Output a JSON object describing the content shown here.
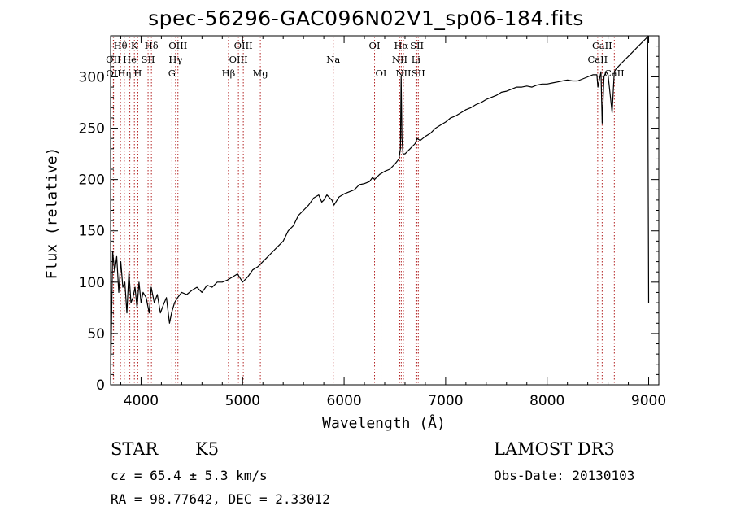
{
  "chart_data": {
    "type": "line",
    "title": "spec-56296-GAC096N02V1_sp06-184.fits",
    "xlabel": "Wavelength (Å)",
    "ylabel": "Flux (relative)",
    "xlim": [
      3700,
      9100
    ],
    "ylim": [
      0,
      340
    ],
    "xticks": [
      4000,
      5000,
      6000,
      7000,
      8000,
      9000
    ],
    "yticks": [
      0,
      50,
      100,
      150,
      200,
      250,
      300
    ],
    "series": [
      {
        "name": "spectrum",
        "x": [
          3700,
          3720,
          3740,
          3760,
          3780,
          3800,
          3820,
          3840,
          3860,
          3880,
          3900,
          3920,
          3940,
          3960,
          3980,
          4000,
          4020,
          4050,
          4080,
          4100,
          4130,
          4160,
          4190,
          4220,
          4250,
          4280,
          4300,
          4330,
          4360,
          4400,
          4450,
          4500,
          4550,
          4600,
          4650,
          4700,
          4750,
          4800,
          4850,
          4900,
          4950,
          5000,
          5050,
          5100,
          5150,
          5200,
          5250,
          5300,
          5350,
          5400,
          5450,
          5500,
          5550,
          5600,
          5650,
          5700,
          5750,
          5780,
          5800,
          5830,
          5860,
          5880,
          5900,
          5950,
          6000,
          6050,
          6100,
          6150,
          6200,
          6250,
          6280,
          6300,
          6350,
          6400,
          6450,
          6500,
          6540,
          6555,
          6562,
          6570,
          6580,
          6600,
          6650,
          6700,
          6720,
          6750,
          6800,
          6850,
          6900,
          6950,
          7000,
          7050,
          7100,
          7150,
          7200,
          7250,
          7300,
          7350,
          7400,
          7450,
          7500,
          7550,
          7600,
          7650,
          7700,
          7750,
          7800,
          7850,
          7900,
          7950,
          8000,
          8050,
          8100,
          8150,
          8200,
          8250,
          8300,
          8350,
          8400,
          8450,
          8490,
          8500,
          8530,
          8542,
          8560,
          8580,
          8600,
          8640,
          8662,
          8680,
          8700,
          8750,
          8800,
          8850,
          8900,
          8950,
          8980,
          8990,
          9000
        ],
        "values": [
          5,
          130,
          110,
          125,
          90,
          120,
          95,
          100,
          70,
          110,
          80,
          85,
          95,
          75,
          100,
          80,
          90,
          85,
          70,
          95,
          80,
          88,
          70,
          78,
          85,
          60,
          70,
          80,
          85,
          90,
          88,
          92,
          95,
          90,
          97,
          95,
          100,
          100,
          102,
          105,
          108,
          100,
          105,
          112,
          115,
          120,
          125,
          130,
          135,
          140,
          150,
          155,
          165,
          170,
          175,
          182,
          185,
          178,
          180,
          185,
          182,
          180,
          175,
          183,
          186,
          188,
          190,
          195,
          196,
          198,
          202,
          200,
          205,
          208,
          210,
          215,
          220,
          230,
          300,
          240,
          225,
          225,
          230,
          235,
          240,
          238,
          242,
          245,
          250,
          253,
          256,
          260,
          262,
          265,
          268,
          270,
          273,
          275,
          278,
          280,
          282,
          285,
          286,
          288,
          290,
          290,
          291,
          290,
          292,
          293,
          293,
          294,
          295,
          296,
          297,
          296,
          296,
          298,
          300,
          302,
          302,
          290,
          305,
          255,
          300,
          305,
          302,
          265,
          305,
          308,
          310,
          315,
          320,
          325,
          330,
          335,
          338,
          340,
          80
        ],
        "color": "#000000"
      }
    ],
    "emission_lines": {
      "top_row": [
        {
          "label": "Hθ",
          "x": 3797
        },
        {
          "label": "K",
          "x": 3934
        },
        {
          "label": "Hδ",
          "x": 4102
        },
        {
          "label": "OIII",
          "x": 4363
        },
        {
          "label": "OIII",
          "x": 5007
        },
        {
          "label": "OI",
          "x": 6300
        },
        {
          "label": "Hα",
          "x": 6563
        },
        {
          "label": "SII",
          "x": 6717
        },
        {
          "label": "CaII",
          "x": 8542
        }
      ],
      "middle_row": [
        {
          "label": "OII",
          "x": 3727
        },
        {
          "label": "He",
          "x": 3889
        },
        {
          "label": "SII",
          "x": 4069
        },
        {
          "label": "Hγ",
          "x": 4340
        },
        {
          "label": "OIII",
          "x": 4959
        },
        {
          "label": "Na",
          "x": 5893
        },
        {
          "label": "NII",
          "x": 6548
        },
        {
          "label": "Li",
          "x": 6708
        },
        {
          "label": "CaII",
          "x": 8498
        }
      ],
      "bottom_row": [
        {
          "label": "OII",
          "x": 3729
        },
        {
          "label": "Hη",
          "x": 3835
        },
        {
          "label": "H",
          "x": 3968
        },
        {
          "label": "G",
          "x": 4304
        },
        {
          "label": "Hβ",
          "x": 4861
        },
        {
          "label": "Mg",
          "x": 5175
        },
        {
          "label": "OI",
          "x": 6364
        },
        {
          "label": "NII",
          "x": 6584
        },
        {
          "label": "SII",
          "x": 6731
        },
        {
          "label": "CaII",
          "x": 8662
        }
      ]
    }
  },
  "info": {
    "class": "STAR",
    "subclass": "K5",
    "survey": "LAMOST DR3",
    "cz": "cz = 65.4 ± 5.3 km/s",
    "obs_date": "Obs-Date: 20130103",
    "coords": "RA =  98.77642, DEC =   2.33012"
  }
}
